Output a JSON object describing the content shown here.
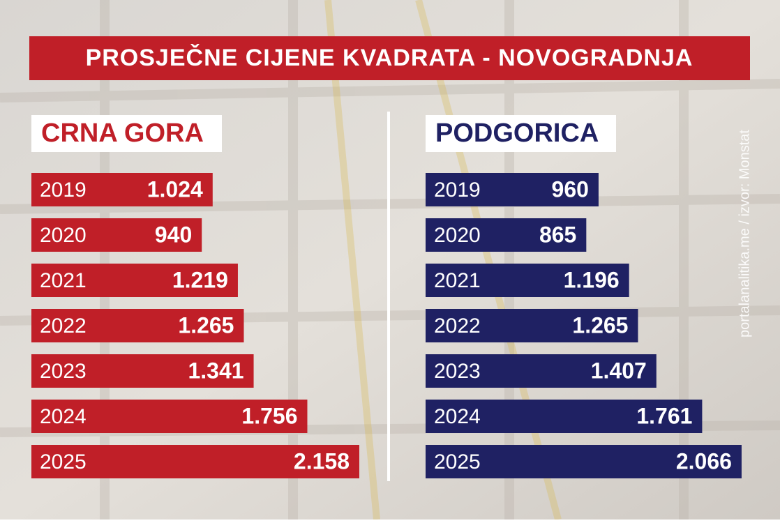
{
  "title": "PROSJEČNE CIJENE KVADRATA - NOVOGRADNJA",
  "source": "portalanalitika.me / izvor: Monstat",
  "chart_data": [
    {
      "type": "bar",
      "orientation": "horizontal",
      "title": "CRNA GORA",
      "color": "#c01f28",
      "categories": [
        "2019",
        "2020",
        "2021",
        "2022",
        "2023",
        "2024",
        "2025"
      ],
      "values": [
        1024,
        940,
        1219,
        1265,
        1341,
        1756,
        2158
      ],
      "value_labels": [
        "1.024",
        "940",
        "1.219",
        "1.265",
        "1.341",
        "1.756",
        "2.158"
      ]
    },
    {
      "type": "bar",
      "orientation": "horizontal",
      "title": "PODGORICA",
      "color": "#1f2163",
      "categories": [
        "2019",
        "2020",
        "2021",
        "2022",
        "2023",
        "2024",
        "2025"
      ],
      "values": [
        960,
        865,
        1196,
        1265,
        1407,
        1761,
        2066
      ],
      "value_labels": [
        "960",
        "865",
        "1.196",
        "1.265",
        "1.407",
        "1.761",
        "2.066"
      ]
    }
  ]
}
